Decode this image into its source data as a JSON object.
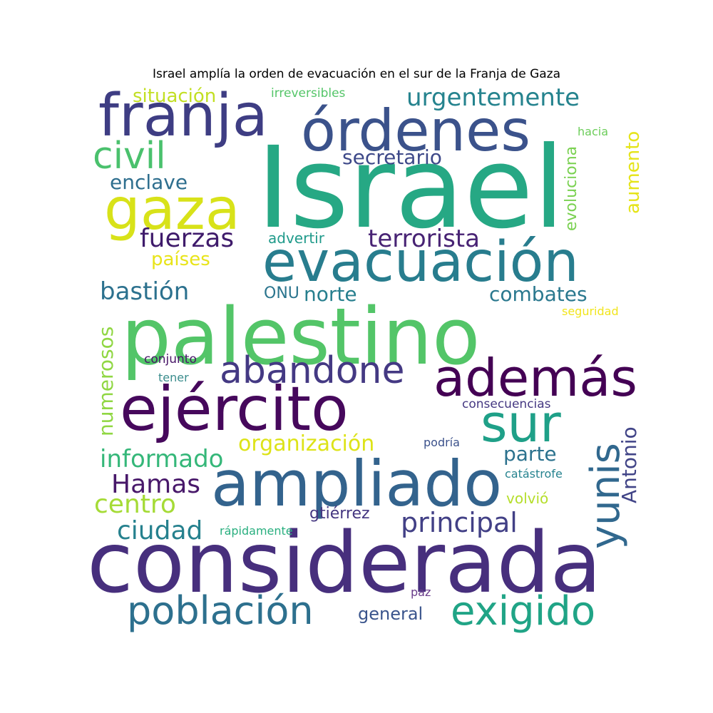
{
  "title": "Israel amplía la orden de evacuación en el sur de la Franja de Gaza",
  "words": [
    {
      "text": "Israel",
      "color": "#26a884",
      "weight": 10
    },
    {
      "text": "considerada",
      "color": "#472f7d",
      "weight": 9
    },
    {
      "text": "palestino",
      "color": "#53c568",
      "weight": 8
    },
    {
      "text": "órdenes",
      "color": "#3b528b",
      "weight": 7
    },
    {
      "text": "franja",
      "color": "#3e3d83",
      "weight": 7
    },
    {
      "text": "evacuación",
      "color": "#287d8e",
      "weight": 6
    },
    {
      "text": "ampliado",
      "color": "#33638d",
      "weight": 6
    },
    {
      "text": "ejército",
      "color": "#46085c",
      "weight": 6
    },
    {
      "text": "además",
      "color": "#440154",
      "weight": 5
    },
    {
      "text": "sur",
      "color": "#1fa088",
      "weight": 5
    },
    {
      "text": "gaza",
      "color": "#d8e219",
      "weight": 5
    },
    {
      "text": "yunis",
      "color": "#31688e",
      "weight": 4
    },
    {
      "text": "exigido",
      "color": "#20a486",
      "weight": 4
    },
    {
      "text": "población",
      "color": "#2d708e",
      "weight": 4
    },
    {
      "text": "abandone",
      "color": "#443983",
      "weight": 4
    },
    {
      "text": "civil",
      "color": "#4ac16d",
      "weight": 4
    },
    {
      "text": "urgentemente",
      "color": "#25838e",
      "weight": 3
    },
    {
      "text": "principal",
      "color": "#424086",
      "weight": 3
    },
    {
      "text": "fuerzas",
      "color": "#3f1b6b",
      "weight": 3
    },
    {
      "text": "terrorista",
      "color": "#482374",
      "weight": 3
    },
    {
      "text": "bastión",
      "color": "#2c718e",
      "weight": 3
    },
    {
      "text": "informado",
      "color": "#35b779",
      "weight": 3
    },
    {
      "text": "Hamas",
      "color": "#48186a",
      "weight": 3
    },
    {
      "text": "centro",
      "color": "#a5db36",
      "weight": 3
    },
    {
      "text": "ciudad",
      "color": "#26818e",
      "weight": 3
    },
    {
      "text": "secretario",
      "color": "#3e4989",
      "weight": 2
    },
    {
      "text": "enclave",
      "color": "#2e6e8e",
      "weight": 2
    },
    {
      "text": "combates",
      "color": "#2a788e",
      "weight": 2
    },
    {
      "text": "organización",
      "color": "#dde318",
      "weight": 2
    },
    {
      "text": "parte",
      "color": "#2c728e",
      "weight": 2
    },
    {
      "text": "Antonio",
      "color": "#414487",
      "weight": 2
    },
    {
      "text": "numerosos",
      "color": "#90d743",
      "weight": 2
    },
    {
      "text": "aumento",
      "color": "#e5e419",
      "weight": 2
    },
    {
      "text": "situación",
      "color": "#c2df23",
      "weight": 2
    },
    {
      "text": "países",
      "color": "#e8e419",
      "weight": 2
    },
    {
      "text": "norte",
      "color": "#277f8e",
      "weight": 2
    },
    {
      "text": "evoluciona",
      "color": "#7ad151",
      "weight": 2
    },
    {
      "text": "gtiérrez",
      "color": "#453781",
      "weight": 2
    },
    {
      "text": "general",
      "color": "#3a548c",
      "weight": 2
    },
    {
      "text": "advertir",
      "color": "#1f9a8a",
      "weight": 1
    },
    {
      "text": "ONU",
      "color": "#2b758e",
      "weight": 1
    },
    {
      "text": "volvió",
      "color": "#b5de2b",
      "weight": 1
    },
    {
      "text": "irreversibles",
      "color": "#54c568",
      "weight": 1
    },
    {
      "text": "hacia",
      "color": "#6ccd5a",
      "weight": 1
    },
    {
      "text": "seguridad",
      "color": "#f1e51d",
      "weight": 1
    },
    {
      "text": "conjunto",
      "color": "#481668",
      "weight": 1
    },
    {
      "text": "tener",
      "color": "#3a8c8c",
      "weight": 1
    },
    {
      "text": "consecuencias",
      "color": "#453882",
      "weight": 1
    },
    {
      "text": "podría",
      "color": "#3b518b",
      "weight": 1
    },
    {
      "text": "catástrofe",
      "color": "#26838f",
      "weight": 1
    },
    {
      "text": "rápidamente",
      "color": "#29af7f",
      "weight": 1
    },
    {
      "text": "paz",
      "color": "#6a3d8a",
      "weight": 1
    }
  ]
}
